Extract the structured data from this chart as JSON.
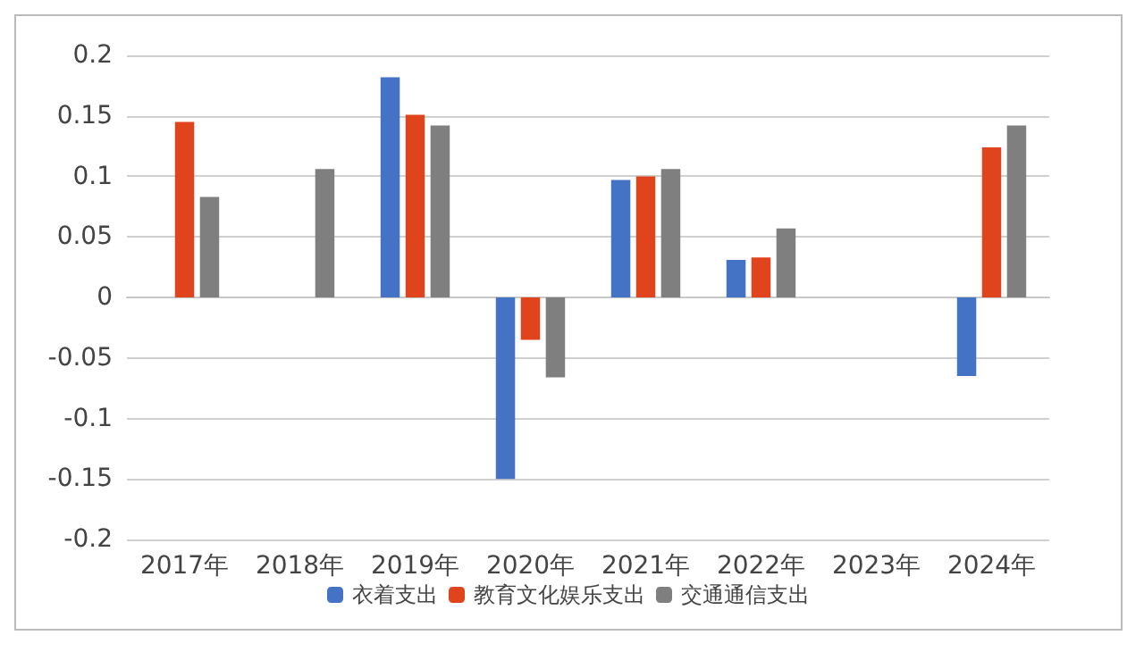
{
  "chart_data": {
    "type": "bar",
    "categories": [
      "2017年",
      "2018年",
      "2019年",
      "2020年",
      "2021年",
      "2022年",
      "2023年",
      "2024年"
    ],
    "series": [
      {
        "name": "衣着支出",
        "color": "#4472c4",
        "values": [
          null,
          null,
          0.182,
          -0.15,
          0.097,
          0.031,
          null,
          -0.065
        ]
      },
      {
        "name": "教育文化娱乐支出",
        "color": "#e0441c",
        "values": [
          0.145,
          null,
          0.151,
          -0.035,
          0.1,
          0.033,
          null,
          0.124
        ]
      },
      {
        "name": "交通通信支出",
        "color": "#7f7f7f",
        "values": [
          0.083,
          0.106,
          0.142,
          -0.066,
          0.106,
          0.057,
          null,
          0.142
        ]
      }
    ],
    "ylim": [
      -0.2,
      0.2
    ],
    "yticks": [
      -0.2,
      -0.15,
      -0.1,
      -0.05,
      0,
      0.05,
      0.1,
      0.15,
      0.2
    ],
    "grid": "y",
    "legend": "bottom"
  }
}
